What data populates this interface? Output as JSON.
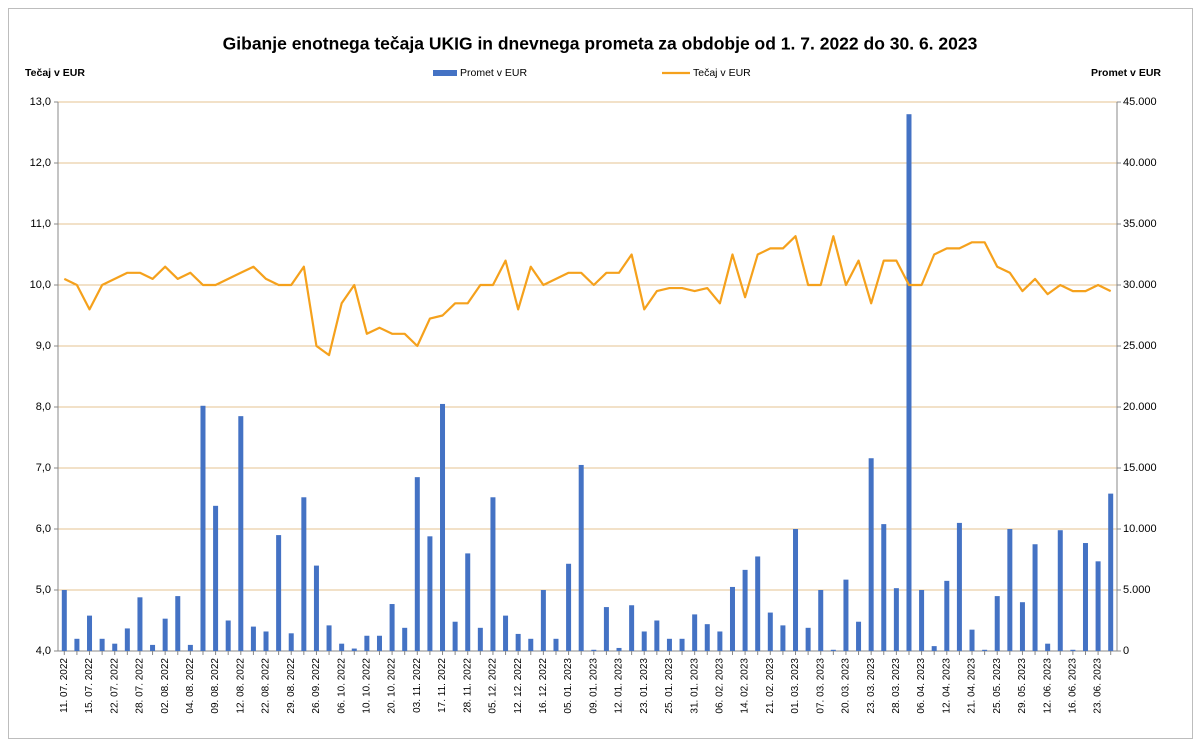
{
  "chart_data": {
    "type": "combo",
    "title": "Gibanje enotnega tečaja UKIG in dnevnega prometa za obdobje od 1. 7. 2022 do 30. 6. 2023",
    "y_label": "Tečaj v EUR",
    "y2_label": "Promet v EUR",
    "categories": [
      "11. 07. 2022",
      null,
      "15. 07. 2022",
      null,
      "22. 07. 2022",
      null,
      "28. 07. 2022",
      null,
      "02. 08. 2022",
      null,
      "04. 08. 2022",
      null,
      "09. 08. 2022",
      null,
      "12. 08. 2022",
      null,
      "22. 08. 2022",
      null,
      "29. 08. 2022",
      null,
      "26. 09. 2022",
      null,
      "06. 10. 2022",
      null,
      "10. 10. 2022",
      null,
      "20. 10. 2022",
      null,
      "03. 11. 2022",
      null,
      "17. 11. 2022",
      null,
      "28. 11. 2022",
      null,
      "05. 12. 2022",
      null,
      "12. 12. 2022",
      null,
      "16. 12. 2022",
      null,
      "05. 01. 2023",
      null,
      "09. 01. 2023",
      null,
      "12. 01. 2023",
      null,
      "23. 01. 2023",
      null,
      "25. 01. 2023",
      null,
      "31. 01. 2023",
      null,
      "06. 02. 2023",
      null,
      "14. 02. 2023",
      null,
      "21. 02. 2023",
      null,
      "01. 03. 2023",
      null,
      "07. 03. 2023",
      null,
      "20. 03. 2023",
      null,
      "23. 03. 2023",
      null,
      "28. 03. 2023",
      null,
      "06. 04. 2023",
      null,
      "12. 04. 2023",
      null,
      "21. 04. 2023",
      null,
      "25. 05. 2023",
      null,
      "29. 05. 2023",
      null,
      "12. 06. 2023",
      null,
      "16. 06. 2023",
      null,
      "23. 06. 2023",
      null
    ],
    "series": [
      {
        "name": "Promet v EUR",
        "type": "bar",
        "axis": "y2",
        "color": "#4472c4",
        "values": [
          5000,
          1000,
          2900,
          1000,
          600,
          1850,
          4400,
          500,
          2650,
          4500,
          500,
          20100,
          11900,
          2500,
          19250,
          2000,
          1600,
          9500,
          1450,
          12600,
          7000,
          2100,
          600,
          200,
          1250,
          1250,
          3850,
          1900,
          14250,
          9400,
          20250,
          2400,
          8000,
          1900,
          12600,
          2900,
          1400,
          1000,
          5000,
          1000,
          7150,
          15250,
          100,
          3600,
          250,
          3750,
          1600,
          2500,
          1000,
          1000,
          3000,
          2200,
          1600,
          5250,
          6650,
          7750,
          3150,
          2100,
          10000,
          1900,
          5000,
          100,
          5850,
          2400,
          15800,
          10400,
          5150,
          44000,
          5000,
          400,
          5750,
          10500,
          1750,
          100,
          4500,
          10000,
          4000,
          8750,
          600,
          9900,
          100,
          8850,
          7350,
          12900
        ]
      },
      {
        "name": "Tečaj v EUR",
        "type": "line",
        "color": "#f5a11c",
        "values": [
          10.1,
          10.0,
          9.6,
          10.0,
          10.1,
          10.2,
          10.2,
          10.1,
          10.3,
          10.1,
          10.2,
          10.0,
          10.0,
          10.1,
          10.2,
          10.3,
          10.1,
          10.0,
          10.0,
          10.3,
          9.0,
          8.85,
          9.7,
          10.0,
          9.2,
          9.3,
          9.2,
          9.2,
          9.0,
          9.45,
          9.5,
          9.7,
          9.7,
          10.0,
          10.0,
          10.4,
          9.6,
          10.3,
          10.0,
          10.1,
          10.2,
          10.2,
          10.0,
          10.2,
          10.2,
          10.5,
          9.6,
          9.9,
          9.95,
          9.95,
          9.9,
          9.95,
          9.7,
          10.5,
          9.8,
          10.5,
          10.6,
          10.6,
          10.8,
          10.0,
          10.0,
          10.8,
          10.0,
          10.4,
          9.7,
          10.4,
          10.4,
          10.0,
          10.0,
          10.5,
          10.6,
          10.6,
          10.7,
          10.7,
          10.3,
          10.2,
          9.9,
          10.1,
          9.85,
          10.0,
          9.9,
          9.9,
          10.0,
          9.9
        ]
      }
    ],
    "ylim": [
      4,
      13
    ],
    "yticks": [
      {
        "value": 4,
        "label": "4,0"
      },
      {
        "value": 5,
        "label": "5,0"
      },
      {
        "value": 6,
        "label": "6,0"
      },
      {
        "value": 7,
        "label": "7,0"
      },
      {
        "value": 8,
        "label": "8,0"
      },
      {
        "value": 9,
        "label": "9,0"
      },
      {
        "value": 10,
        "label": "10,0"
      },
      {
        "value": 11,
        "label": "11,0"
      },
      {
        "value": 12,
        "label": "12,0"
      },
      {
        "value": 13,
        "label": "13,0"
      }
    ],
    "y2lim": [
      0,
      45000
    ],
    "y2ticks": [
      0,
      {
        "value": 5000,
        "label": "5.000"
      },
      {
        "value": 10000,
        "label": "10.000"
      },
      {
        "value": 15000,
        "label": "15.000"
      },
      {
        "value": 20000,
        "label": "20.000"
      },
      {
        "value": 25000,
        "label": "25.000"
      },
      {
        "value": 30000,
        "label": "30.000"
      },
      {
        "value": 35000,
        "label": "35.000"
      },
      {
        "value": 40000,
        "label": "40.000"
      },
      {
        "value": 45000,
        "label": "45.000"
      }
    ],
    "grid": true,
    "grid_color": "#e6c391",
    "legend": "top"
  }
}
